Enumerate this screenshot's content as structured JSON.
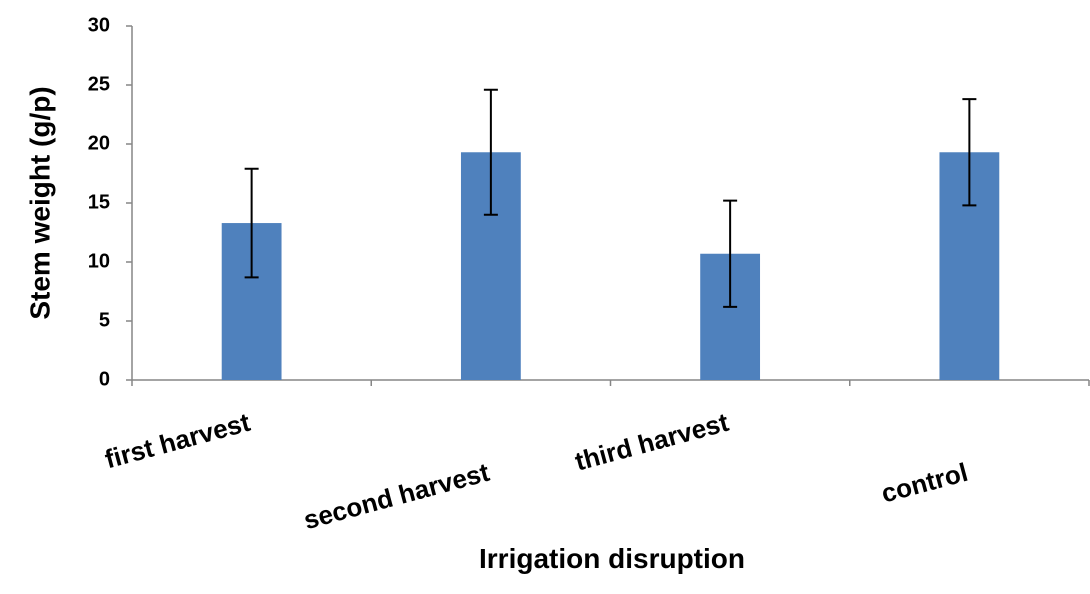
{
  "chart_data": {
    "type": "bar",
    "x_label": "Irrigation disruption",
    "y_label": "Stem weight (g/p)",
    "categories": [
      "first harvest",
      "second harvest",
      "third harvest",
      "control"
    ],
    "series": [
      {
        "color": "#4f81bd",
        "values": [
          13.3,
          19.3,
          10.7,
          19.3
        ],
        "errors": [
          4.6,
          5.3,
          4.5,
          4.5
        ]
      }
    ],
    "ylim": [
      0,
      30
    ],
    "yticks": [
      0,
      5,
      10,
      15,
      20,
      25,
      30
    ],
    "grid": false
  }
}
